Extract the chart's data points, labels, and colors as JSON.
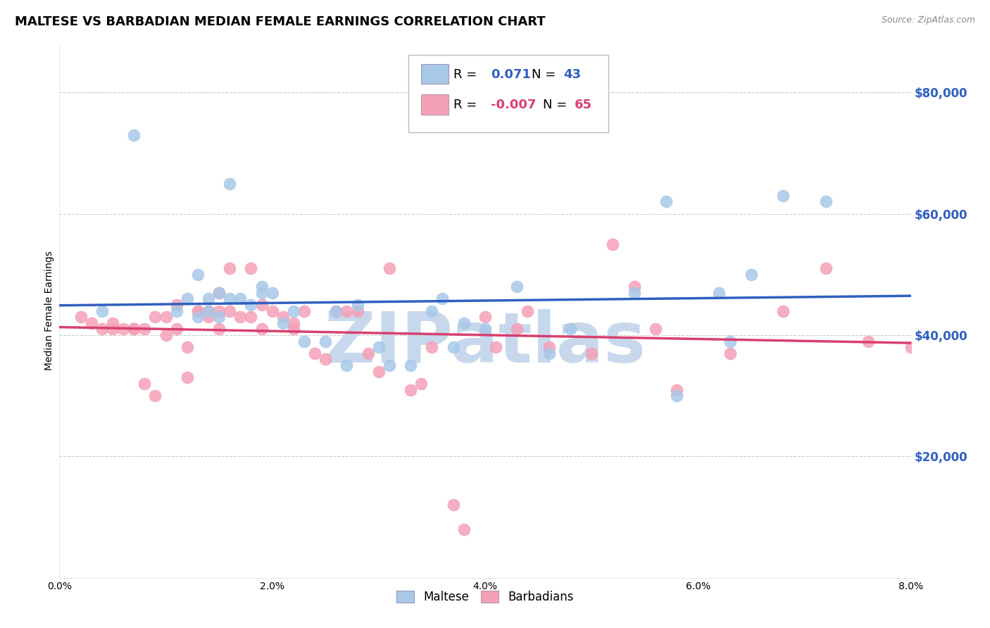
{
  "title": "MALTESE VS BARBADIAN MEDIAN FEMALE EARNINGS CORRELATION CHART",
  "source": "Source: ZipAtlas.com",
  "ylabel": "Median Female Earnings",
  "xlim": [
    0.0,
    0.08
  ],
  "ylim": [
    0,
    88000
  ],
  "xticks": [
    0.0,
    0.01,
    0.02,
    0.03,
    0.04,
    0.05,
    0.06,
    0.07,
    0.08
  ],
  "xticklabels": [
    "0.0%",
    "",
    "2.0%",
    "",
    "4.0%",
    "",
    "6.0%",
    "",
    "8.0%"
  ],
  "yticks_right": [
    20000,
    40000,
    60000,
    80000
  ],
  "ytick_labels_right": [
    "$20,000",
    "$40,000",
    "$60,000",
    "$80,000"
  ],
  "blue_color": "#A8C8E8",
  "pink_color": "#F4A0B8",
  "blue_line_color": "#3060C0",
  "pink_line_color": "#D84070",
  "watermark_color": "#C8D8EC",
  "watermark_text": "ZIPatlas",
  "legend_color1": "#3060C0",
  "legend_color2": "#D84070",
  "maltese_x": [
    0.004,
    0.007,
    0.011,
    0.012,
    0.013,
    0.013,
    0.014,
    0.014,
    0.015,
    0.015,
    0.016,
    0.016,
    0.017,
    0.018,
    0.019,
    0.019,
    0.02,
    0.021,
    0.022,
    0.023,
    0.025,
    0.026,
    0.027,
    0.028,
    0.03,
    0.031,
    0.033,
    0.035,
    0.036,
    0.037,
    0.038,
    0.04,
    0.043,
    0.046,
    0.048,
    0.054,
    0.057,
    0.058,
    0.062,
    0.063,
    0.065,
    0.068,
    0.072
  ],
  "maltese_y": [
    44000,
    73000,
    44000,
    46000,
    50000,
    43000,
    46000,
    44000,
    47000,
    43000,
    46000,
    65000,
    46000,
    45000,
    48000,
    47000,
    47000,
    42000,
    44000,
    39000,
    39000,
    44000,
    35000,
    45000,
    38000,
    35000,
    35000,
    44000,
    46000,
    38000,
    42000,
    41000,
    48000,
    37000,
    41000,
    47000,
    62000,
    30000,
    47000,
    39000,
    50000,
    63000,
    62000
  ],
  "barbadian_x": [
    0.002,
    0.003,
    0.004,
    0.005,
    0.005,
    0.006,
    0.007,
    0.007,
    0.008,
    0.008,
    0.009,
    0.009,
    0.01,
    0.01,
    0.011,
    0.011,
    0.012,
    0.012,
    0.013,
    0.013,
    0.014,
    0.014,
    0.015,
    0.015,
    0.015,
    0.016,
    0.016,
    0.017,
    0.018,
    0.018,
    0.019,
    0.019,
    0.02,
    0.021,
    0.022,
    0.022,
    0.023,
    0.024,
    0.025,
    0.026,
    0.027,
    0.028,
    0.029,
    0.03,
    0.031,
    0.033,
    0.034,
    0.035,
    0.037,
    0.038,
    0.04,
    0.041,
    0.043,
    0.044,
    0.046,
    0.05,
    0.052,
    0.054,
    0.056,
    0.058,
    0.063,
    0.068,
    0.072,
    0.076,
    0.08
  ],
  "barbadian_y": [
    43000,
    42000,
    41000,
    42000,
    41000,
    41000,
    41000,
    41000,
    41000,
    32000,
    43000,
    30000,
    40000,
    43000,
    45000,
    41000,
    33000,
    38000,
    44000,
    44000,
    44000,
    43000,
    47000,
    41000,
    44000,
    51000,
    44000,
    43000,
    43000,
    51000,
    45000,
    41000,
    44000,
    43000,
    42000,
    41000,
    44000,
    37000,
    36000,
    44000,
    44000,
    44000,
    37000,
    34000,
    51000,
    31000,
    32000,
    38000,
    12000,
    8000,
    43000,
    38000,
    41000,
    44000,
    38000,
    37000,
    55000,
    48000,
    41000,
    31000,
    37000,
    44000,
    51000,
    39000,
    38000
  ],
  "title_fontsize": 13,
  "axis_label_fontsize": 10,
  "tick_fontsize": 10,
  "background_color": "#FFFFFF",
  "grid_color": "#CCCCCC",
  "grid_style": "--",
  "right_tick_color": "#3060C0"
}
